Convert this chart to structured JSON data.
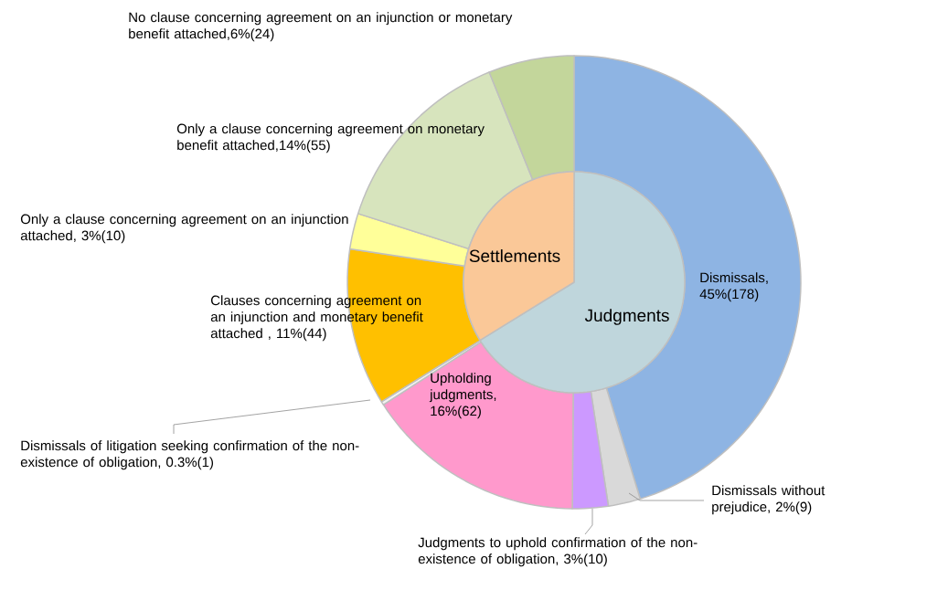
{
  "chart_data": [
    {
      "type": "donut",
      "categories": [
        "Dismissals, 45%(178)",
        "Dismissals without prejudice, 2%(9)",
        "Judgments to uphold confirmation of the non-existence of obligation, 3%(10)",
        "Upholding judgments, 16%(62)",
        "Dismissals of litigation seeking confirmation of the non-existence of obligation, 0.3%(1)",
        "Clauses concerning agreement on an injunction and monetary benefit attached , 11%(44)",
        "Only a clause concerning agreement on an injunction attached, 3%(10)",
        "Only a clause concerning agreement on monetary benefit attached,14%(55)",
        "No clause concerning agreement on an injunction or monetary benefit attached,6%(24)"
      ],
      "values": [
        178,
        9,
        10,
        62,
        1,
        44,
        10,
        55,
        24
      ],
      "colors": [
        "#8eb4e3",
        "#d9d9d9",
        "#cc99ff",
        "#ff99cc",
        "#f2f2f2",
        "#ffc000",
        "#ffff99",
        "#d7e4bd",
        "#c3d69b"
      ]
    },
    {
      "type": "pie",
      "categories": [
        "Judgments",
        "Settlements"
      ],
      "values": [
        66.2,
        33.8
      ],
      "colors": [
        "#bfd6dc",
        "#fac898"
      ]
    }
  ]
}
